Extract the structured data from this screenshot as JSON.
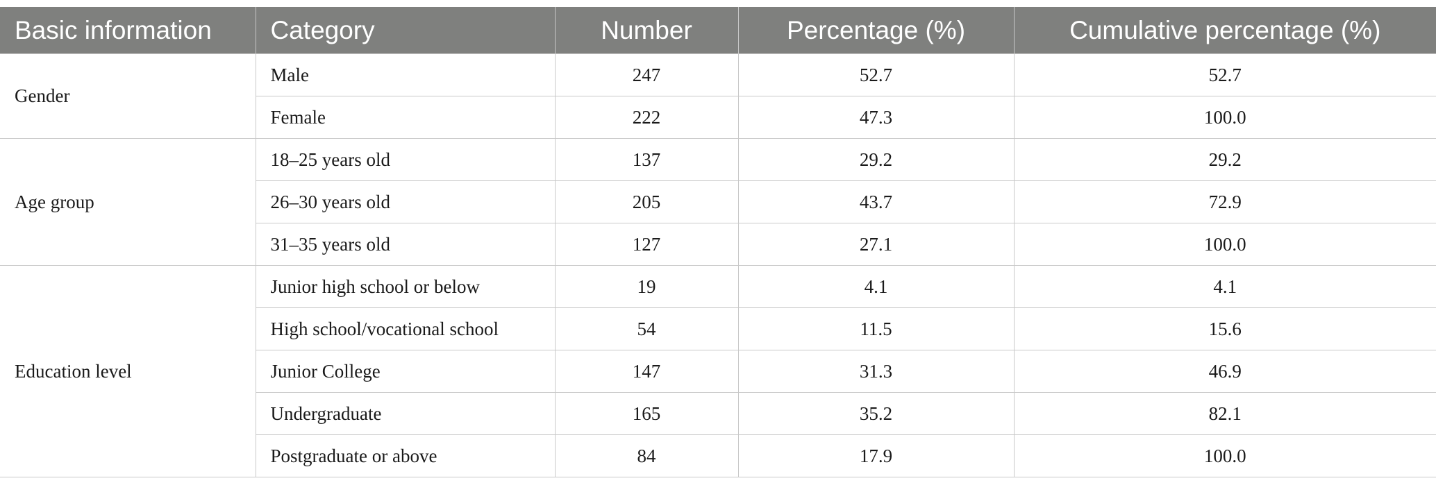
{
  "headers": [
    "Basic information",
    "Category",
    "Number",
    "Percentage (%)",
    "Cumulative percentage (%)"
  ],
  "groups": [
    {
      "label": "Gender",
      "rows": [
        {
          "category": "Male",
          "number": "247",
          "percentage": "52.7",
          "cumulative": "52.7"
        },
        {
          "category": "Female",
          "number": "222",
          "percentage": "47.3",
          "cumulative": "100.0"
        }
      ]
    },
    {
      "label": "Age group",
      "rows": [
        {
          "category": "18–25 years old",
          "number": "137",
          "percentage": "29.2",
          "cumulative": "29.2"
        },
        {
          "category": "26–30 years old",
          "number": "205",
          "percentage": "43.7",
          "cumulative": "72.9"
        },
        {
          "category": "31–35 years old",
          "number": "127",
          "percentage": "27.1",
          "cumulative": "100.0"
        }
      ]
    },
    {
      "label": "Education level",
      "rows": [
        {
          "category": "Junior high school or below",
          "number": "19",
          "percentage": "4.1",
          "cumulative": "4.1"
        },
        {
          "category": "High school/vocational school",
          "number": "54",
          "percentage": "11.5",
          "cumulative": "15.6"
        },
        {
          "category": "Junior College",
          "number": "147",
          "percentage": "31.3",
          "cumulative": "46.9"
        },
        {
          "category": "Undergraduate",
          "number": "165",
          "percentage": "35.2",
          "cumulative": "82.1"
        },
        {
          "category": "Postgraduate or above",
          "number": "84",
          "percentage": "17.9",
          "cumulative": "100.0"
        }
      ]
    }
  ]
}
